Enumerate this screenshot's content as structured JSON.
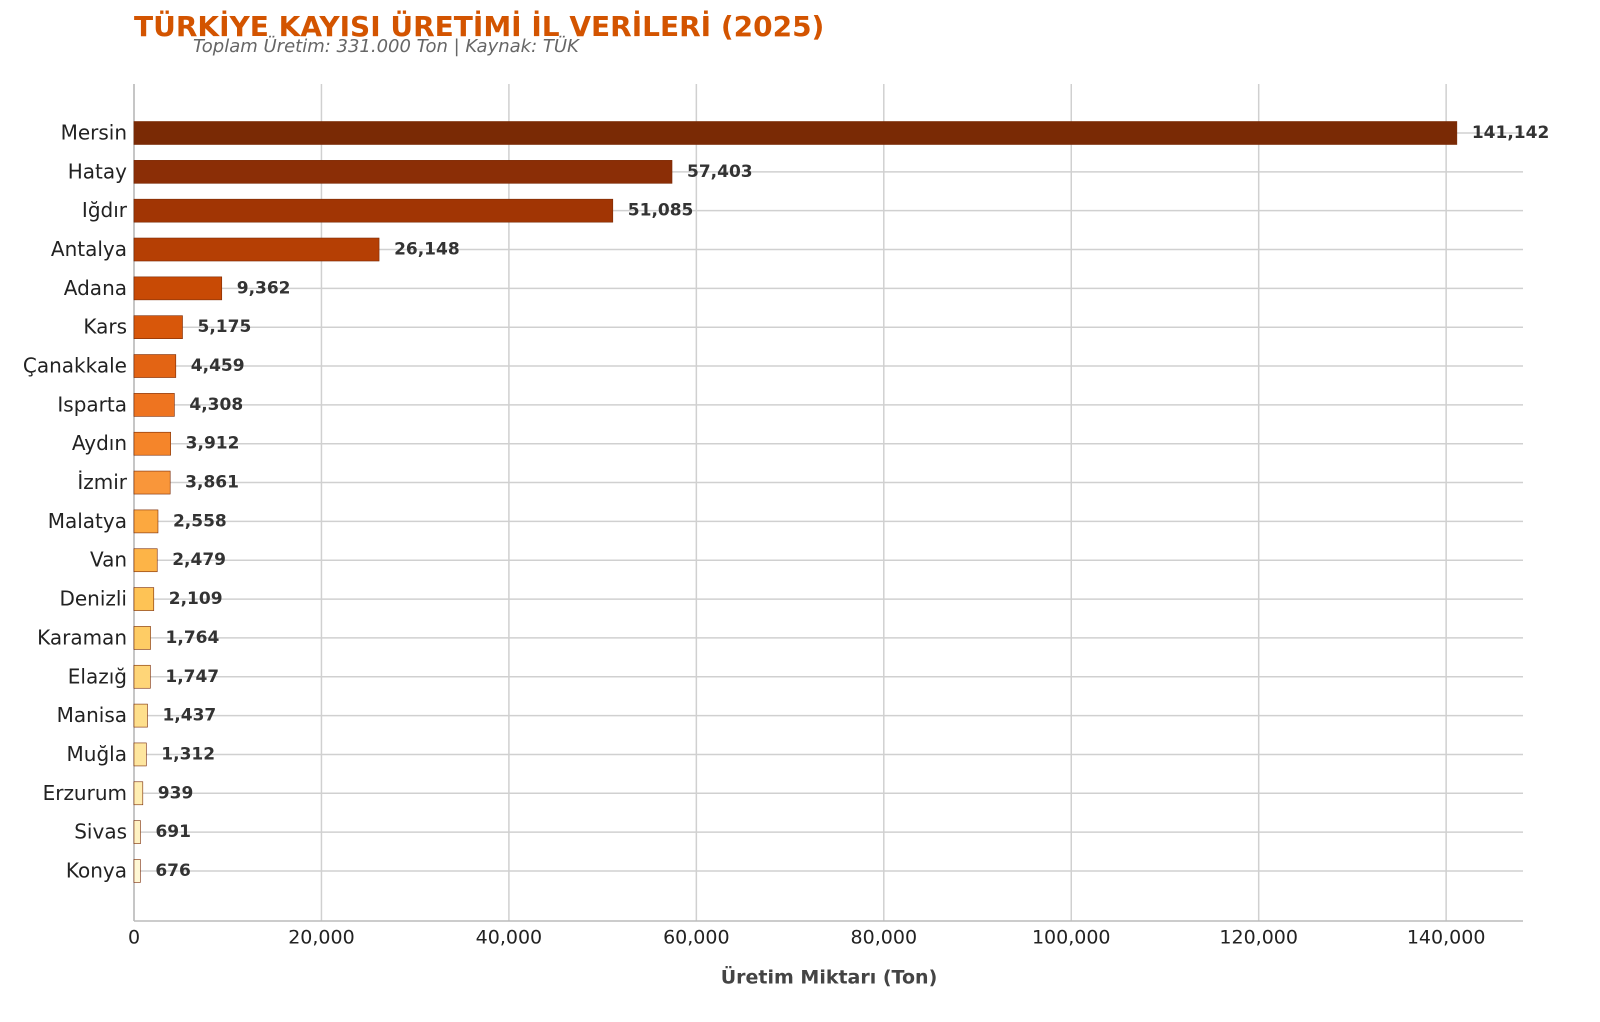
{
  "chart_data": {
    "type": "barh",
    "title": "TÜRKİYE KAYISI ÜRETİMİ İL VERİLERİ (2025)",
    "subtitle": "Toplam Üretim: 331.000 Ton | Kaynak: TÜK",
    "xlabel": "Üretim Miktarı (Ton)",
    "categories": [
      "Mersin",
      "Hatay",
      "Iğdır",
      "Antalya",
      "Adana",
      "Kars",
      "Çanakkale",
      "Isparta",
      "Aydın",
      "İzmir",
      "Malatya",
      "Van",
      "Denizli",
      "Karaman",
      "Elazığ",
      "Manisa",
      "Muğla",
      "Erzurum",
      "Sivas",
      "Konya"
    ],
    "values": [
      141142,
      57403,
      51085,
      26148,
      9362,
      5175,
      4459,
      4308,
      3912,
      3861,
      2558,
      2479,
      2109,
      1764,
      1747,
      1437,
      1312,
      939,
      691,
      676
    ],
    "value_labels": [
      "141,142",
      "57,403",
      "51,085",
      "26,148",
      "9,362",
      "5,175",
      "4,459",
      "4,308",
      "3,912",
      "3,861",
      "2,558",
      "2,479",
      "2,109",
      "1,764",
      "1,747",
      "1,437",
      "1,312",
      "939",
      "691",
      "676"
    ],
    "colors": [
      "#7a2a05",
      "#8b2e06",
      "#a13504",
      "#b53f04",
      "#c84a05",
      "#d8570a",
      "#e36414",
      "#ee7420",
      "#f5852a",
      "#f9963a",
      "#fca83f",
      "#fdb447",
      "#fec355",
      "#fecc65",
      "#fed578",
      "#fedf8c",
      "#fee69f",
      "#ffeeb3",
      "#fff2c3",
      "#fff7d4"
    ],
    "xlim": [
      0,
      148200
    ],
    "xticks": [
      0,
      {
        "value": 20000,
        "label": "20,000"
      },
      {
        "value": 40000,
        "label": "40,000"
      },
      {
        "value": 60000,
        "label": "60,000"
      },
      {
        "value": 80000,
        "label": "80,000"
      },
      {
        "value": 100000,
        "label": "100,000"
      },
      {
        "value": 120000,
        "label": "120,000"
      },
      {
        "value": 140000,
        "label": "140,000"
      }
    ],
    "grid": true
  }
}
